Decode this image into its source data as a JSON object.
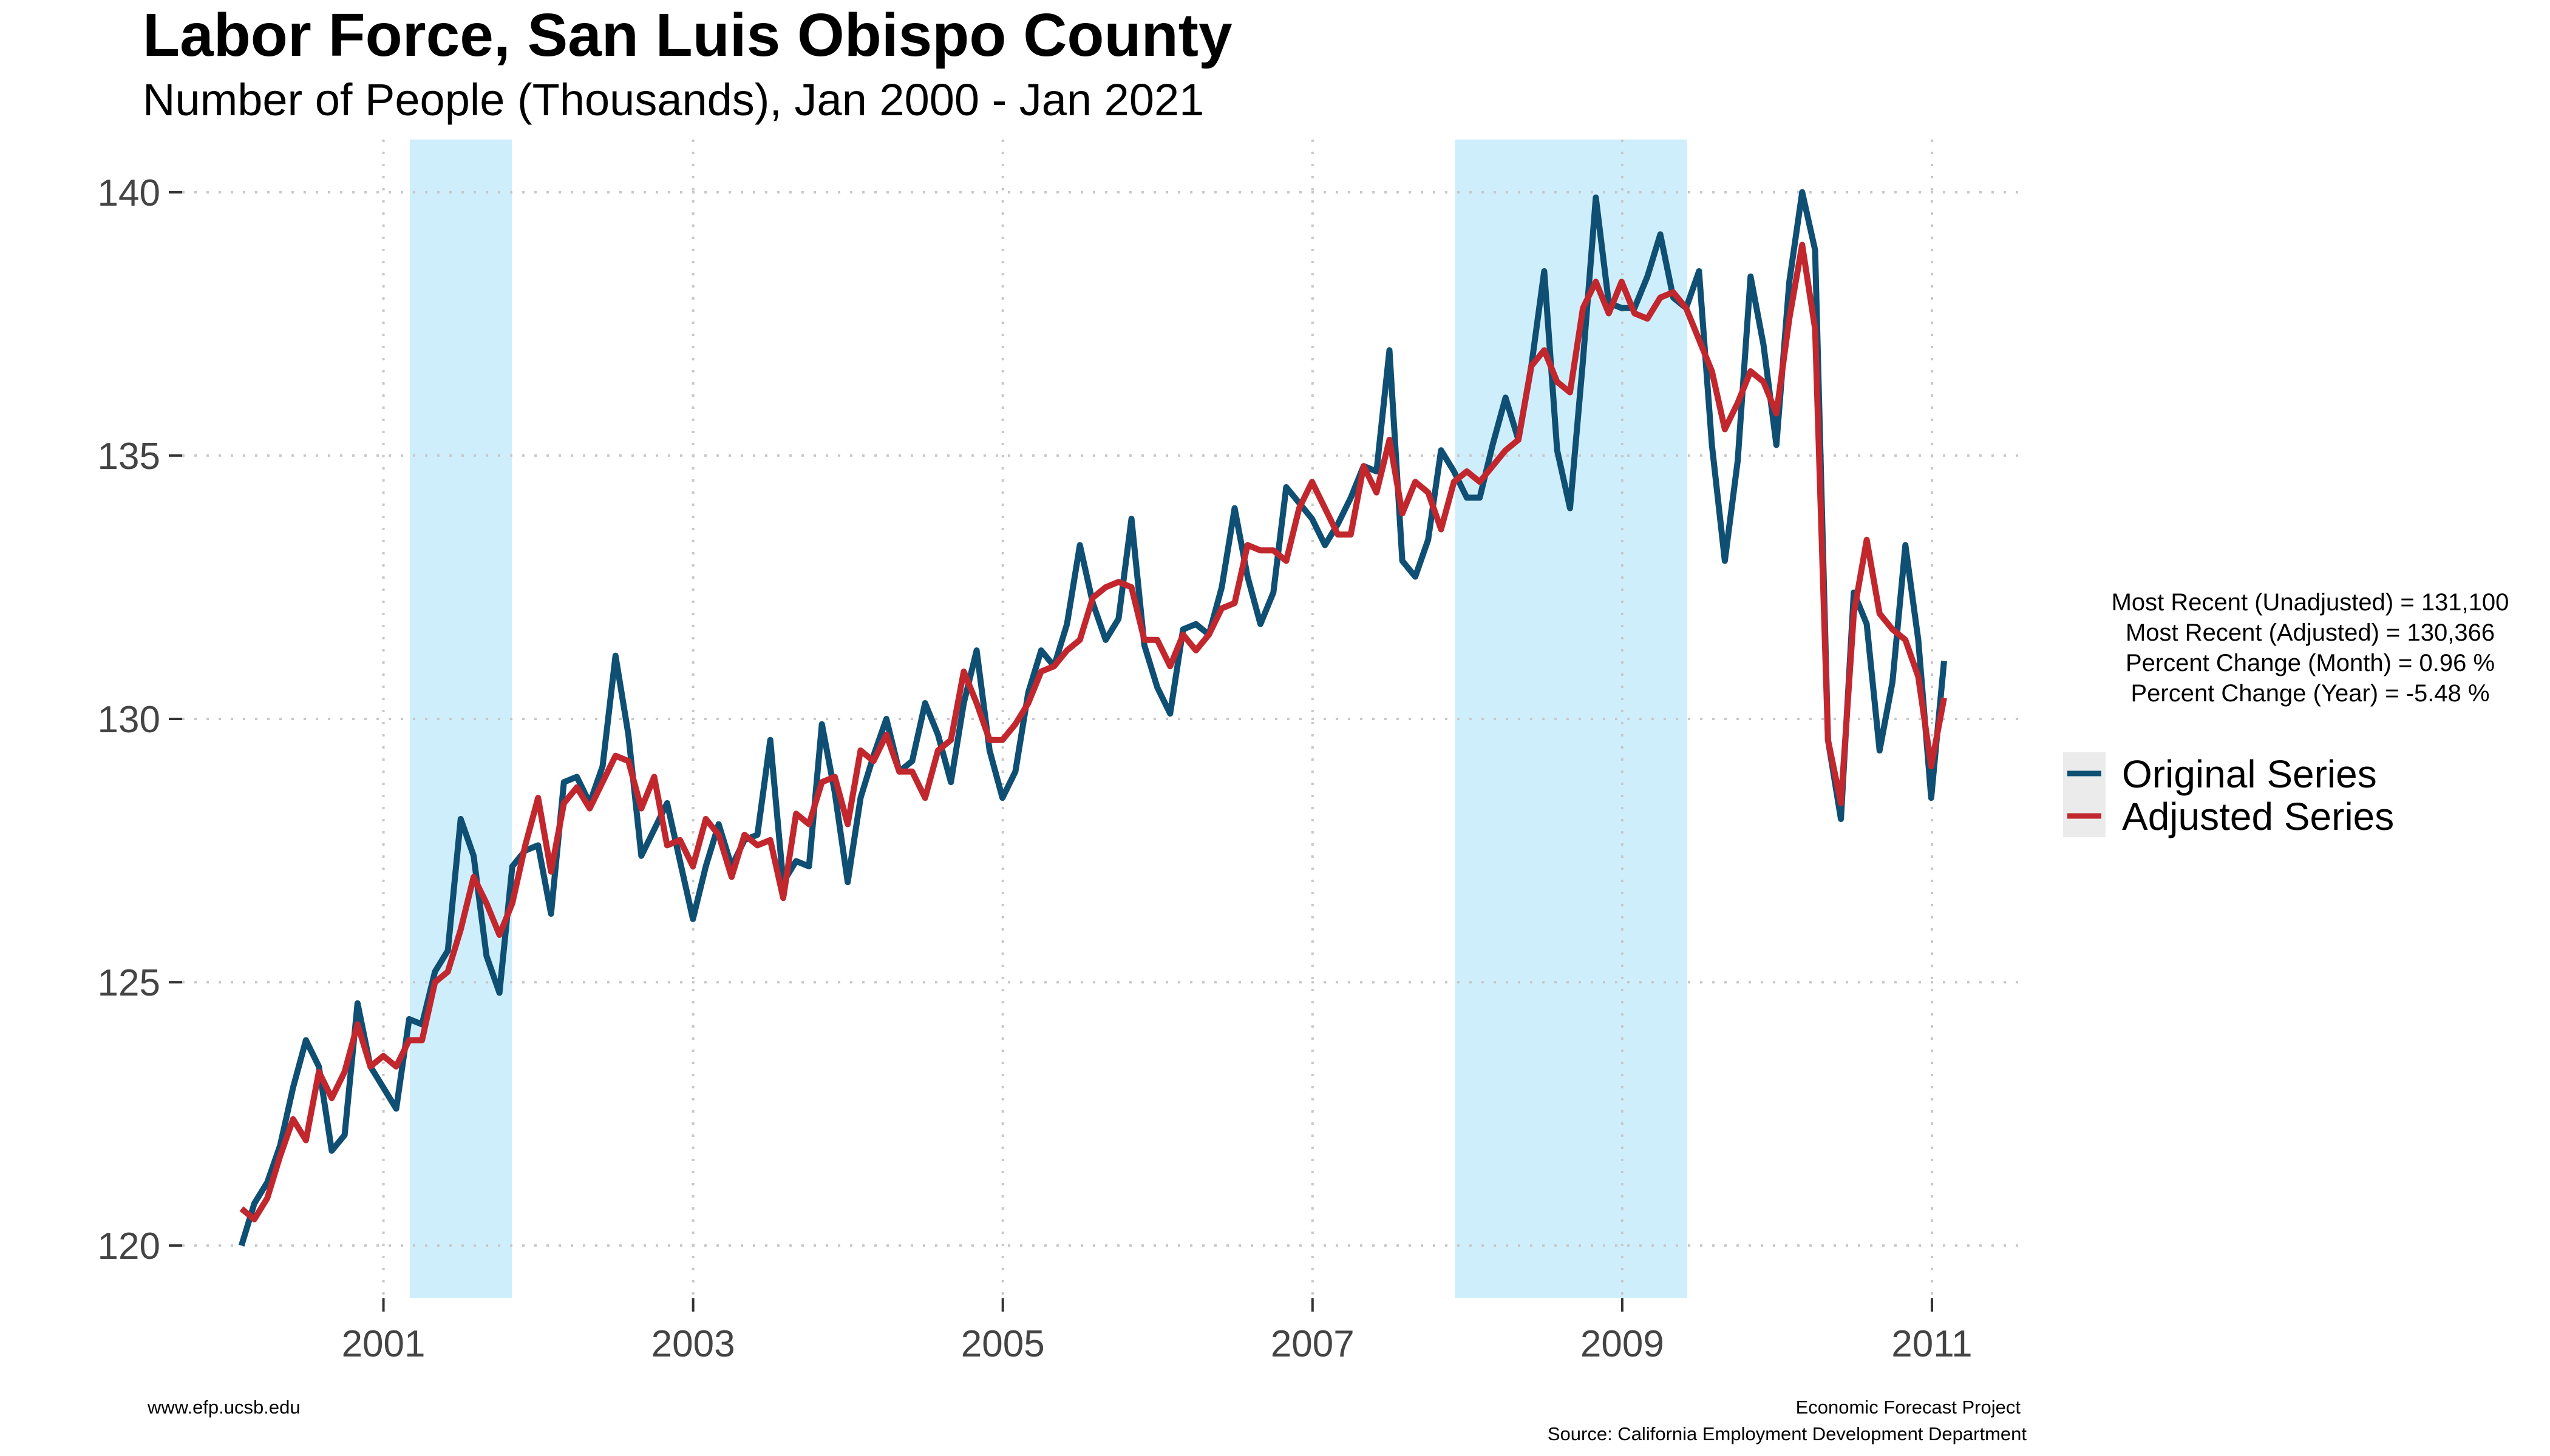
{
  "header": {
    "title": "Labor Force, San Luis Obispo County",
    "subtitle": "Number of People (Thousands), Jan 2000 - Jan 2021"
  },
  "annotations": {
    "line1": "Most Recent (Unadjusted) = 131,100",
    "line2": "Most Recent (Adjusted) = 130,366",
    "line3": "Percent Change (Month) = 0.96 %",
    "line4": "Percent Change (Year) = -5.48 %"
  },
  "footer": {
    "website": "www.efp.ucsb.edu",
    "project": "Economic Forecast Project",
    "source": "Source: California Employment Development Department"
  },
  "chart_data": {
    "type": "line",
    "title": "Labor Force, San Luis Obispo County",
    "subtitle": "Number of People (Thousands), Jan 2000 - Jan 2021",
    "xlabel": "",
    "ylabel": "",
    "x_start": 2000.083,
    "x_step": 0.0833,
    "xlim": [
      1999.7,
      2011.6
    ],
    "ylim": [
      119.0,
      141.0
    ],
    "x_ticks": [
      2001,
      2003,
      2005,
      2007,
      2009,
      2011
    ],
    "x_tick_labels": [
      "2001",
      "2003",
      "2005",
      "2007",
      "2009",
      "2011"
    ],
    "y_ticks": [
      120,
      125,
      130,
      135,
      140
    ],
    "y_tick_labels": [
      "120",
      "125",
      "130",
      "135",
      "140"
    ],
    "grid": true,
    "legend_position": "right",
    "recessions": [
      [
        2001.17,
        2001.83
      ],
      [
        2007.92,
        2009.42
      ]
    ],
    "recession_color": "#cfeefc",
    "series": [
      {
        "name": "Original Series",
        "color": "#0e4f73",
        "values": [
          120.0,
          120.8,
          121.2,
          121.9,
          123.0,
          123.9,
          123.4,
          121.8,
          122.1,
          124.6,
          123.4,
          123.0,
          122.6,
          124.3,
          124.2,
          125.2,
          125.6,
          128.1,
          127.4,
          125.5,
          124.8,
          127.2,
          127.5,
          127.6,
          126.3,
          128.8,
          128.9,
          128.4,
          129.1,
          131.2,
          129.7,
          127.4,
          127.9,
          128.4,
          127.3,
          126.2,
          127.2,
          128.0,
          127.2,
          127.7,
          127.8,
          129.6,
          126.9,
          127.3,
          127.2,
          129.9,
          128.6,
          126.9,
          128.5,
          129.3,
          130.0,
          129.0,
          129.2,
          130.3,
          129.7,
          128.8,
          130.3,
          131.3,
          129.4,
          128.5,
          129.0,
          130.5,
          131.3,
          131.0,
          131.8,
          133.3,
          132.2,
          131.5,
          131.9,
          133.8,
          131.4,
          130.6,
          130.1,
          131.7,
          131.8,
          131.6,
          132.5,
          134.0,
          132.7,
          131.8,
          132.4,
          134.4,
          134.1,
          133.8,
          133.3,
          133.7,
          134.2,
          134.8,
          134.7,
          137.0,
          133.0,
          132.7,
          133.4,
          135.1,
          134.7,
          134.2,
          134.2,
          135.2,
          136.1,
          135.3,
          136.7,
          138.5,
          135.1,
          134.0,
          136.8,
          139.9,
          137.9,
          137.8,
          137.8,
          138.4,
          139.2,
          138.0,
          137.8,
          138.5,
          135.2,
          133.0,
          134.9,
          138.4,
          137.1,
          135.2,
          138.3,
          140.0,
          138.9,
          129.6,
          128.1,
          132.4,
          131.8,
          129.4,
          130.7,
          133.3,
          131.5,
          128.5,
          131.1
        ]
      },
      {
        "name": "Adjusted Series",
        "color": "#c1272d",
        "values": [
          120.7,
          120.5,
          120.9,
          121.7,
          122.4,
          122.0,
          123.3,
          122.8,
          123.3,
          124.2,
          123.4,
          123.6,
          123.4,
          123.9,
          123.9,
          125.0,
          125.2,
          126.0,
          127.0,
          126.5,
          125.9,
          126.5,
          127.6,
          128.5,
          127.1,
          128.4,
          128.7,
          128.3,
          128.8,
          129.3,
          129.2,
          128.3,
          128.9,
          127.6,
          127.7,
          127.2,
          128.1,
          127.8,
          127.0,
          127.8,
          127.6,
          127.7,
          126.6,
          128.2,
          128.0,
          128.8,
          128.9,
          128.0,
          129.4,
          129.2,
          129.7,
          129.0,
          129.0,
          128.5,
          129.4,
          129.6,
          130.9,
          130.3,
          129.6,
          129.6,
          129.9,
          130.3,
          130.9,
          131.0,
          131.3,
          131.5,
          132.3,
          132.5,
          132.6,
          132.5,
          131.5,
          131.5,
          131.0,
          131.6,
          131.3,
          131.6,
          132.1,
          132.2,
          133.3,
          133.2,
          133.2,
          133.0,
          134.0,
          134.5,
          134.0,
          133.5,
          133.5,
          134.8,
          134.3,
          135.3,
          133.9,
          134.5,
          134.3,
          133.6,
          134.5,
          134.7,
          134.5,
          134.8,
          135.1,
          135.3,
          136.7,
          137.0,
          136.4,
          136.2,
          137.8,
          138.3,
          137.7,
          138.3,
          137.7,
          137.6,
          138.0,
          138.1,
          137.8,
          137.2,
          136.6,
          135.5,
          136.0,
          136.6,
          136.4,
          135.8,
          137.6,
          139.0,
          137.4,
          129.6,
          128.4,
          132.0,
          133.4,
          132.0,
          131.7,
          131.5,
          130.8,
          129.1,
          130.4
        ]
      }
    ]
  }
}
